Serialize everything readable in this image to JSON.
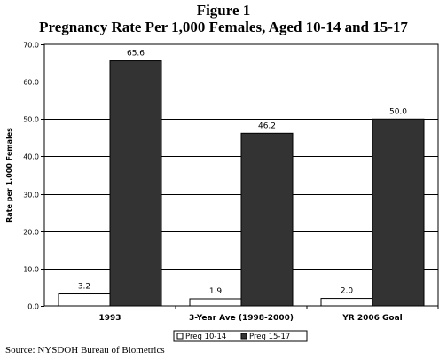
{
  "chart_data": {
    "type": "bar",
    "title": "Figure 1",
    "subtitle": "Pregnancy Rate Per 1,000 Females, Aged 10-14 and 15-17",
    "xlabel": "",
    "ylabel": "Rate per 1,000 Females",
    "ylim": [
      0,
      70
    ],
    "yticks": [
      "0.0",
      "10.0",
      "20.0",
      "30.0",
      "40.0",
      "50.0",
      "60.0",
      "70.0"
    ],
    "categories": [
      "1993",
      "3-Year Ave (1998-2000)",
      "YR 2006 Goal"
    ],
    "series": [
      {
        "name": "Preg 10-14",
        "values": [
          3.2,
          1.9,
          2.0
        ],
        "labels": [
          "3.2",
          "1.9",
          "2.0"
        ],
        "color": "#ffffff"
      },
      {
        "name": "Preg 15-17",
        "values": [
          65.6,
          46.2,
          50.0
        ],
        "labels": [
          "65.6",
          "46.2",
          "50.0"
        ],
        "color": "#333333"
      }
    ],
    "grid": true,
    "legend": "bottom"
  },
  "source": "Source: NYSDOH Bureau of Biometrics"
}
